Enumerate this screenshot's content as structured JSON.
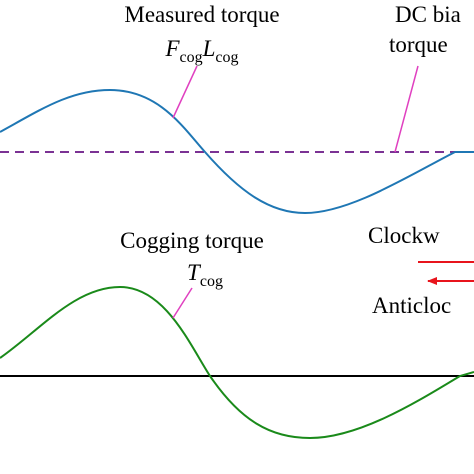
{
  "measured_label": {
    "title": "Measured torque",
    "symbol": [
      {
        "text": "F",
        "sub": "cog"
      },
      {
        "text": "L",
        "sub": "cog"
      }
    ]
  },
  "bias_label": {
    "line1": "DC bia",
    "line2": "torque"
  },
  "cogging_label": {
    "title": "Cogging torque",
    "symbol": [
      {
        "text": "T",
        "sub": "cog"
      }
    ]
  },
  "direction_legend": {
    "clockwise": "Clockw",
    "anticlockwise": "Anticloc"
  }
}
